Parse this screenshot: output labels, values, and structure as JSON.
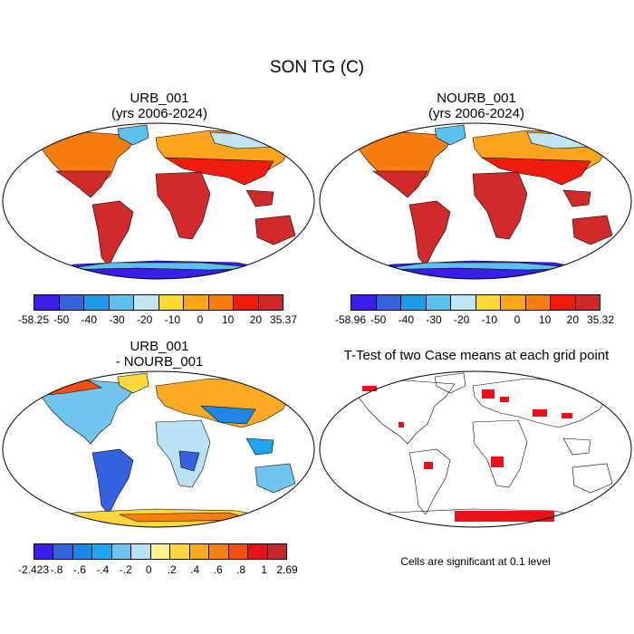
{
  "page_title": "SON TG (C)",
  "panels": [
    {
      "id": "urb",
      "title_line1": "URB_001",
      "title_line2": "(yrs 2006-2024)"
    },
    {
      "id": "nourb",
      "title_line1": "NOURB_001",
      "title_line2": "(yrs 2006-2024)"
    },
    {
      "id": "diff",
      "title_line1": "URB_001",
      "title_line2": "- NOURB_001"
    },
    {
      "id": "ttest",
      "title_line1": "T-Test of two Case means at each grid point",
      "title_line2": ""
    }
  ],
  "colorbars": [
    {
      "id": "urb",
      "colors": [
        "#3a1eea",
        "#3563e0",
        "#1e9be6",
        "#5cc1ec",
        "#bfe6f2",
        "#fdd83a",
        "#fba51f",
        "#f87d10",
        "#ef1d10",
        "#cc2a2a"
      ],
      "labels": [
        "-58.25",
        "-50",
        "-40",
        "-30",
        "-20",
        "-10",
        "0",
        "10",
        "20",
        "35.37"
      ]
    },
    {
      "id": "nourb",
      "colors": [
        "#3a1eea",
        "#3563e0",
        "#1e9be6",
        "#5cc1ec",
        "#bfe6f2",
        "#fdd83a",
        "#fba51f",
        "#f87d10",
        "#ef1d10",
        "#cc2a2a"
      ],
      "labels": [
        "-58.96",
        "-50",
        "-40",
        "-30",
        "-20",
        "-10",
        "0",
        "10",
        "20",
        "35.32"
      ]
    },
    {
      "id": "diff",
      "colors": [
        "#3a1eea",
        "#3563e0",
        "#1e86e6",
        "#20a6ee",
        "#70c4ee",
        "#b9e3f5",
        "#fef590",
        "#fed73f",
        "#fbaa25",
        "#f88010",
        "#f35013",
        "#e8131a",
        "#c42a2a"
      ],
      "labels": [
        "-2.423",
        "-.8",
        "-.6",
        "-.4",
        "-.2",
        "0",
        ".2",
        ".4",
        ".6",
        ".8",
        "1",
        "2.69"
      ]
    }
  ],
  "footnote": "Cells are significant at 0.1 level",
  "colors": {
    "warm_land": "#d22a2a",
    "mid_land": "#ef1d10",
    "cool_land": "#fba51f",
    "cold_land": "#fdd83a",
    "polar": "#5cc1ec",
    "antarctic": "#3a1eea",
    "significance": "#e8131a",
    "ocean": "#ffffff",
    "outline": "#000000"
  }
}
